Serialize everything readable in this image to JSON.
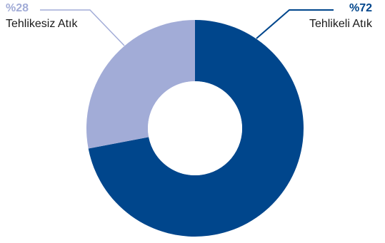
{
  "chart_data": {
    "type": "pie",
    "donut": true,
    "start_angle_deg": 0,
    "direction": "clockwise",
    "slices": [
      {
        "label": "Tehlikeli Atık",
        "value": 72,
        "value_label": "%72",
        "color": "#00468c"
      },
      {
        "label": "Tehlikesiz Atık",
        "value": 28,
        "value_label": "%28",
        "color": "#a2acd7"
      }
    ],
    "legend": "none"
  }
}
